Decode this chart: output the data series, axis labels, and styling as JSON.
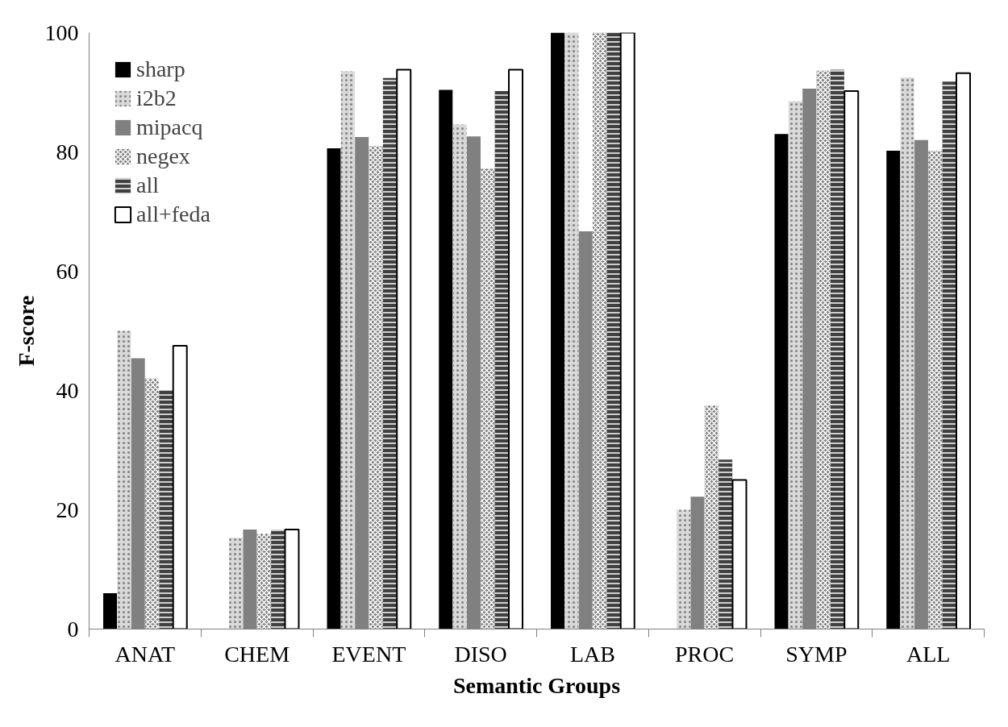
{
  "chart_data": {
    "type": "bar",
    "xlabel": "Semantic Groups",
    "ylabel": "F-score",
    "categories": [
      "ANAT",
      "CHEM",
      "EVENT",
      "DISO",
      "LAB",
      "PROC",
      "SYMP",
      "ALL"
    ],
    "series": [
      {
        "name": "sharp",
        "color": "#000000",
        "values": [
          6,
          0,
          80.6,
          90.4,
          100,
          0,
          83,
          80.2
        ]
      },
      {
        "name": "i2b2",
        "color": "#d9d9d9",
        "values": [
          50,
          15.3,
          93.5,
          84.6,
          100,
          20,
          88.5,
          92.5
        ]
      },
      {
        "name": "mipacq",
        "color": "#808080",
        "values": [
          45.4,
          16.7,
          82.5,
          82.6,
          66.7,
          22.2,
          90.6,
          82
        ]
      },
      {
        "name": "negex",
        "color": "#808080",
        "values": [
          42,
          16,
          81,
          77.2,
          100,
          37.5,
          93.6,
          80.2
        ]
      },
      {
        "name": "all",
        "color": "#404040",
        "values": [
          40,
          16.7,
          92.4,
          90.2,
          100,
          28.4,
          93.8,
          91.8
        ]
      },
      {
        "name": "all+feda",
        "color": "#ffffff",
        "values": [
          47.5,
          16.7,
          93.8,
          93.8,
          100,
          25,
          90.2,
          93.2
        ]
      }
    ],
    "ylim": [
      0,
      100
    ],
    "yticks": [
      0,
      20,
      40,
      60,
      80,
      100
    ],
    "grid": false,
    "legend": "top left"
  }
}
